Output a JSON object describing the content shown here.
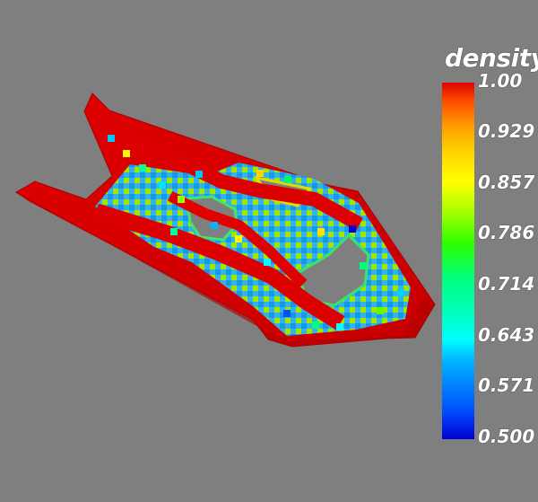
{
  "scene": {
    "background_color": "#7f7f7f",
    "object_name": ""
  },
  "colorbar": {
    "title": "density",
    "min": 0.5,
    "max": 1.0,
    "ticks": [
      "1.00",
      "0.929",
      "0.857",
      "0.786",
      "0.714",
      "0.643",
      "0.571",
      "0.500"
    ],
    "colors": {
      "high": "#dd0000",
      "mid": "#ffff00",
      "low": "#0000d0"
    }
  }
}
